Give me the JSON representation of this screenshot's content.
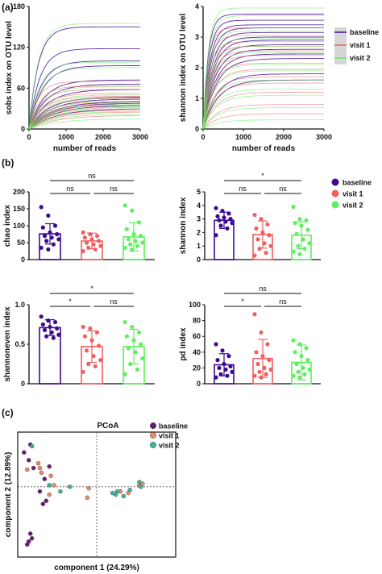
{
  "panel_labels": {
    "a": "(a)",
    "b": "(b)",
    "c": "(c)"
  },
  "groups": [
    {
      "name": "baseline",
      "color": "#3d0a91",
      "dot": "#3d0a91",
      "pcoa": "#6a1b7a"
    },
    {
      "name": "visit 1",
      "color": "#f06060",
      "dot": "#f06060",
      "pcoa": "#f08a6a"
    },
    {
      "name": "visit 2",
      "color": "#5ef05e",
      "dot": "#5ef05e",
      "pcoa": "#3fb4a0"
    }
  ],
  "chart_data": [
    {
      "id": "sobs",
      "type": "line",
      "xlabel": "number of reads",
      "ylabel": "sobs index on OTU level",
      "xlim": [
        0,
        3000
      ],
      "ylim": [
        0,
        180
      ],
      "xticks": [
        0,
        1000,
        2000,
        3000
      ],
      "yticks": [
        0,
        60,
        120,
        180
      ],
      "series": [
        {
          "group": 0,
          "plateaus": [
            150,
            118,
            100,
            93,
            72,
            66,
            58,
            47,
            44,
            40,
            38,
            35,
            30
          ]
        },
        {
          "group": 1,
          "plateaus": [
            70,
            63,
            58,
            52,
            48,
            45,
            41,
            38,
            35,
            32,
            28,
            25,
            20
          ]
        },
        {
          "group": 2,
          "plateaus": [
            155,
            98,
            90,
            62,
            50,
            46,
            40,
            36,
            33,
            30,
            26,
            22,
            15
          ]
        }
      ]
    },
    {
      "id": "shannon_rare",
      "type": "line",
      "xlabel": "number of reads",
      "ylabel": "shannon index on OTU level",
      "xlim": [
        0,
        3000
      ],
      "ylim": [
        0,
        4
      ],
      "xticks": [
        0,
        1000,
        2000,
        3000
      ],
      "yticks": [
        0,
        1,
        2,
        3,
        4
      ],
      "legend": [
        "baseline",
        "visit 1",
        "visit 2"
      ],
      "series": [
        {
          "group": 0,
          "plateaus": [
            3.75,
            3.55,
            3.4,
            3.3,
            3.15,
            3.0,
            2.9,
            2.75,
            2.6,
            2.45,
            2.3,
            1.8,
            1.6
          ]
        },
        {
          "group": 1,
          "plateaus": [
            3.3,
            3.05,
            2.85,
            2.7,
            2.55,
            2.4,
            2.15,
            1.95,
            1.7,
            1.5,
            1.2,
            0.8,
            0.5
          ]
        },
        {
          "group": 2,
          "plateaus": [
            3.95,
            3.7,
            3.2,
            2.95,
            2.7,
            2.5,
            2.1,
            1.9,
            1.6,
            1.3,
            1.1,
            0.7,
            0.3
          ]
        }
      ]
    },
    {
      "id": "chao",
      "type": "bar",
      "ylabel": "chao index",
      "ylim": [
        0,
        200
      ],
      "yticks": [
        0,
        50,
        100,
        150,
        200
      ],
      "categories": [
        "baseline",
        "visit 1",
        "visit 2"
      ],
      "means": [
        76,
        55,
        67
      ],
      "sd": [
        30,
        23,
        42
      ],
      "points": [
        [
          155,
          130,
          100,
          95,
          80,
          75,
          70,
          65,
          60,
          55,
          45,
          35,
          30
        ],
        [
          80,
          75,
          70,
          65,
          60,
          55,
          50,
          45,
          40,
          35,
          30,
          25
        ],
        [
          160,
          145,
          110,
          90,
          75,
          70,
          60,
          55,
          50,
          45,
          40,
          35,
          30
        ]
      ],
      "brackets": [
        {
          "from": 0,
          "to": 2,
          "level": 1,
          "label": "ns"
        },
        {
          "from": 0,
          "to": 1,
          "level": 0,
          "label": "ns"
        },
        {
          "from": 1,
          "to": 2,
          "level": 0,
          "label": "ns"
        }
      ],
      "legend": [
        "baseline",
        "visit 1",
        "visit 2"
      ]
    },
    {
      "id": "shannon",
      "type": "bar",
      "ylabel": "shannon index",
      "ylim": [
        0,
        5
      ],
      "yticks": [
        0,
        1,
        2,
        3,
        4,
        5
      ],
      "categories": [
        "baseline",
        "visit 1",
        "visit 2"
      ],
      "means": [
        2.9,
        1.85,
        1.8
      ],
      "sd": [
        0.6,
        1.0,
        1.0
      ],
      "points": [
        [
          3.8,
          3.6,
          3.4,
          3.2,
          3.1,
          3.0,
          2.9,
          2.8,
          2.7,
          2.5,
          2.3,
          1.8
        ],
        [
          3.3,
          3.0,
          2.6,
          2.3,
          2.0,
          1.8,
          1.5,
          1.2,
          1.0,
          0.8,
          0.5,
          0.3
        ],
        [
          3.9,
          3.0,
          2.9,
          2.7,
          2.5,
          2.2,
          1.9,
          1.5,
          1.2,
          1.0,
          0.8,
          0.6,
          0.4
        ]
      ],
      "brackets": [
        {
          "from": 0,
          "to": 2,
          "level": 1,
          "label": "*"
        },
        {
          "from": 0,
          "to": 1,
          "level": 0,
          "label": "ns"
        },
        {
          "from": 1,
          "to": 2,
          "level": 0,
          "label": "ns"
        }
      ]
    },
    {
      "id": "shannoneven",
      "type": "bar",
      "ylabel": "shannoneven index",
      "ylim": [
        0,
        1.0
      ],
      "yticks": [
        0,
        0.5,
        1.0
      ],
      "ytick_labels": [
        "0",
        "0.5",
        "1.0"
      ],
      "categories": [
        "baseline",
        "visit 1",
        "visit 2"
      ],
      "means": [
        0.71,
        0.47,
        0.47
      ],
      "sd": [
        0.1,
        0.2,
        0.22
      ],
      "points": [
        [
          0.85,
          0.8,
          0.78,
          0.75,
          0.72,
          0.7,
          0.68,
          0.65,
          0.62,
          0.6,
          0.58
        ],
        [
          0.72,
          0.7,
          0.65,
          0.6,
          0.55,
          0.48,
          0.42,
          0.35,
          0.3,
          0.25,
          0.22,
          0.15
        ],
        [
          0.78,
          0.72,
          0.65,
          0.6,
          0.55,
          0.5,
          0.45,
          0.4,
          0.32,
          0.25,
          0.18,
          0.12
        ]
      ],
      "brackets": [
        {
          "from": 0,
          "to": 2,
          "level": 1,
          "label": "*"
        },
        {
          "from": 0,
          "to": 1,
          "level": 0,
          "label": "*"
        },
        {
          "from": 1,
          "to": 2,
          "level": 0,
          "label": "ns"
        }
      ]
    },
    {
      "id": "pd",
      "type": "bar",
      "ylabel": "pd index",
      "ylim": [
        0,
        100
      ],
      "yticks": [
        0,
        20,
        40,
        60,
        80,
        100
      ],
      "categories": [
        "baseline",
        "visit 1",
        "visit 2"
      ],
      "means": [
        24,
        32,
        27
      ],
      "sd": [
        14,
        24,
        22
      ],
      "points": [
        [
          50,
          42,
          35,
          30,
          25,
          22,
          20,
          18,
          15,
          12,
          10,
          8
        ],
        [
          88,
          65,
          50,
          40,
          35,
          30,
          25,
          20,
          18,
          15,
          12,
          10,
          8
        ],
        [
          55,
          50,
          45,
          40,
          35,
          30,
          25,
          20,
          18,
          15,
          12,
          10,
          8
        ]
      ],
      "brackets": [
        {
          "from": 0,
          "to": 2,
          "level": 1,
          "label": "ns"
        },
        {
          "from": 0,
          "to": 1,
          "level": 0,
          "label": "*"
        },
        {
          "from": 1,
          "to": 2,
          "level": 0,
          "label": "ns"
        }
      ]
    },
    {
      "id": "pcoa",
      "type": "scatter",
      "title": "PCoA",
      "xlabel": "component 1 (24.29%)",
      "ylabel": "component 2 (12.89%)",
      "xlim": [
        -0.5,
        0.5
      ],
      "ylim": [
        -0.45,
        0.35
      ],
      "legend": [
        "baseline",
        "visit 1",
        "visit 2"
      ],
      "points": [
        {
          "g": 0,
          "x": -0.42,
          "y": 0.27
        },
        {
          "g": 0,
          "x": -0.46,
          "y": 0.22
        },
        {
          "g": 0,
          "x": -0.43,
          "y": 0.17
        },
        {
          "g": 0,
          "x": -0.4,
          "y": 0.12
        },
        {
          "g": 0,
          "x": -0.3,
          "y": 0.13
        },
        {
          "g": 0,
          "x": -0.33,
          "y": 0.05
        },
        {
          "g": 0,
          "x": -0.36,
          "y": -0.03
        },
        {
          "g": 0,
          "x": -0.32,
          "y": -0.09
        },
        {
          "g": 0,
          "x": -0.34,
          "y": -0.11
        },
        {
          "g": 0,
          "x": -0.42,
          "y": -0.3
        },
        {
          "g": 0,
          "x": -0.41,
          "y": -0.33
        },
        {
          "g": 0,
          "x": -0.43,
          "y": -0.35
        },
        {
          "g": 0,
          "x": -0.44,
          "y": -0.37
        },
        {
          "g": 1,
          "x": -0.44,
          "y": 0.11
        },
        {
          "g": 1,
          "x": -0.37,
          "y": 0.15
        },
        {
          "g": 1,
          "x": -0.36,
          "y": 0.12
        },
        {
          "g": 1,
          "x": -0.35,
          "y": 0.09
        },
        {
          "g": 1,
          "x": -0.29,
          "y": 0.07
        },
        {
          "g": 1,
          "x": -0.27,
          "y": 0.01
        },
        {
          "g": 1,
          "x": -0.3,
          "y": -0.05
        },
        {
          "g": 1,
          "x": -0.05,
          "y": -0.01
        },
        {
          "g": 1,
          "x": -0.06,
          "y": -0.07
        },
        {
          "g": 1,
          "x": 0.2,
          "y": -0.04
        },
        {
          "g": 1,
          "x": 0.27,
          "y": 0.01
        },
        {
          "g": 1,
          "x": 0.29,
          "y": 0.02
        },
        {
          "g": 1,
          "x": 0.15,
          "y": -0.03
        },
        {
          "g": 2,
          "x": -0.41,
          "y": 0.26
        },
        {
          "g": 2,
          "x": -0.3,
          "y": 0.01
        },
        {
          "g": 2,
          "x": -0.23,
          "y": -0.03
        },
        {
          "g": 2,
          "x": -0.17,
          "y": 0.0
        },
        {
          "g": 2,
          "x": 0.12,
          "y": -0.05
        },
        {
          "g": 2,
          "x": 0.13,
          "y": -0.03
        },
        {
          "g": 2,
          "x": 0.17,
          "y": -0.06
        },
        {
          "g": 2,
          "x": 0.21,
          "y": -0.02
        },
        {
          "g": 2,
          "x": 0.27,
          "y": 0.03
        },
        {
          "g": 2,
          "x": 0.28,
          "y": 0.0
        },
        {
          "g": 2,
          "x": 0.1,
          "y": -0.04
        }
      ]
    }
  ]
}
